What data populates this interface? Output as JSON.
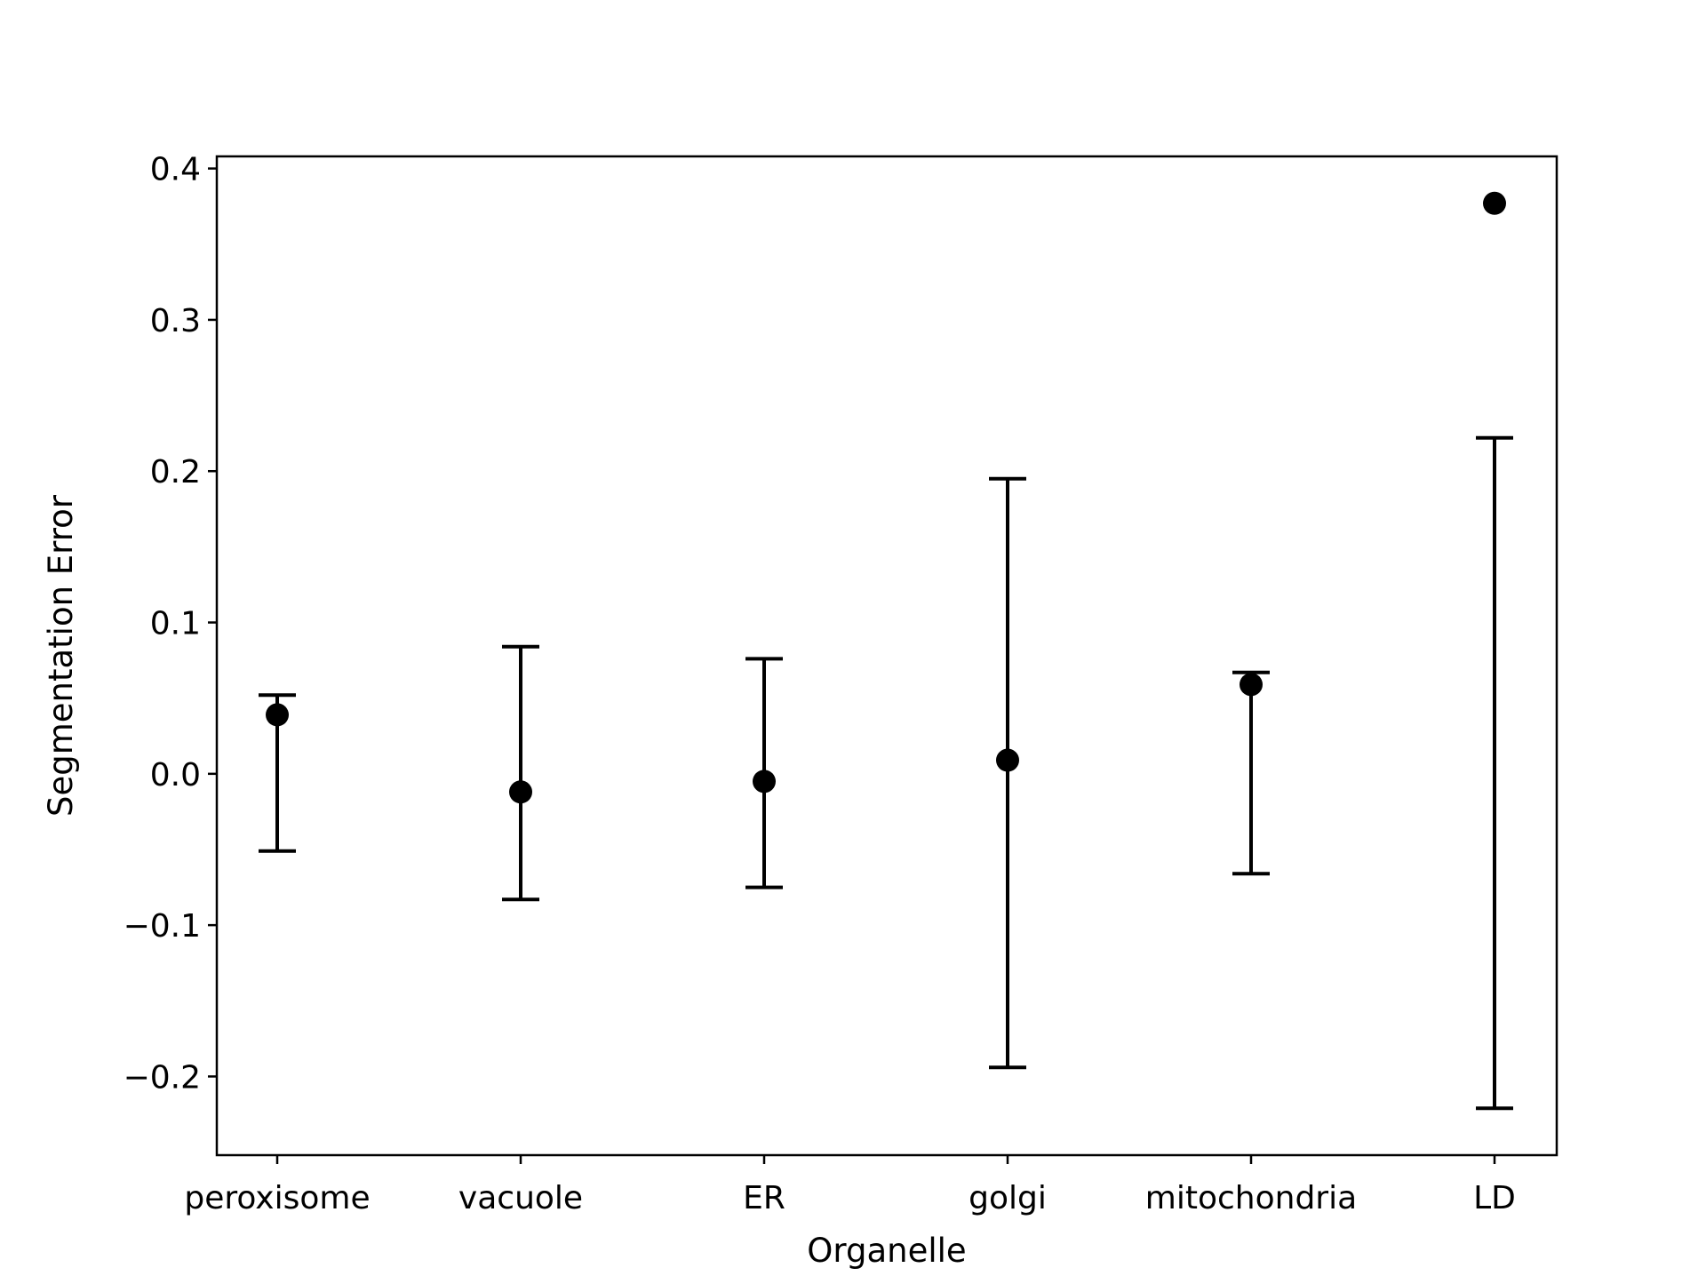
{
  "chart_data": {
    "type": "scatter",
    "title": "",
    "xlabel": "Organelle",
    "ylabel": "Segmentation Error",
    "categories": [
      "peroxisome",
      "vacuole",
      "ER",
      "golgi",
      "mitochondria",
      "LD"
    ],
    "values": [
      0.039,
      -0.012,
      -0.005,
      0.009,
      0.059,
      0.377
    ],
    "error_upper": [
      0.052,
      0.084,
      0.076,
      0.195,
      0.067,
      0.222
    ],
    "error_lower": [
      -0.051,
      -0.083,
      -0.075,
      -0.194,
      -0.066,
      -0.221
    ],
    "ylim": [
      -0.252,
      0.408
    ],
    "yticks": [
      -0.2,
      -0.1,
      0.0,
      0.1,
      0.2,
      0.3,
      0.4
    ],
    "ytick_labels": [
      "−0.2",
      "−0.1",
      "0.0",
      "0.1",
      "0.2",
      "0.3",
      "0.4"
    ],
    "grid": false,
    "marker_color": "#000000"
  }
}
